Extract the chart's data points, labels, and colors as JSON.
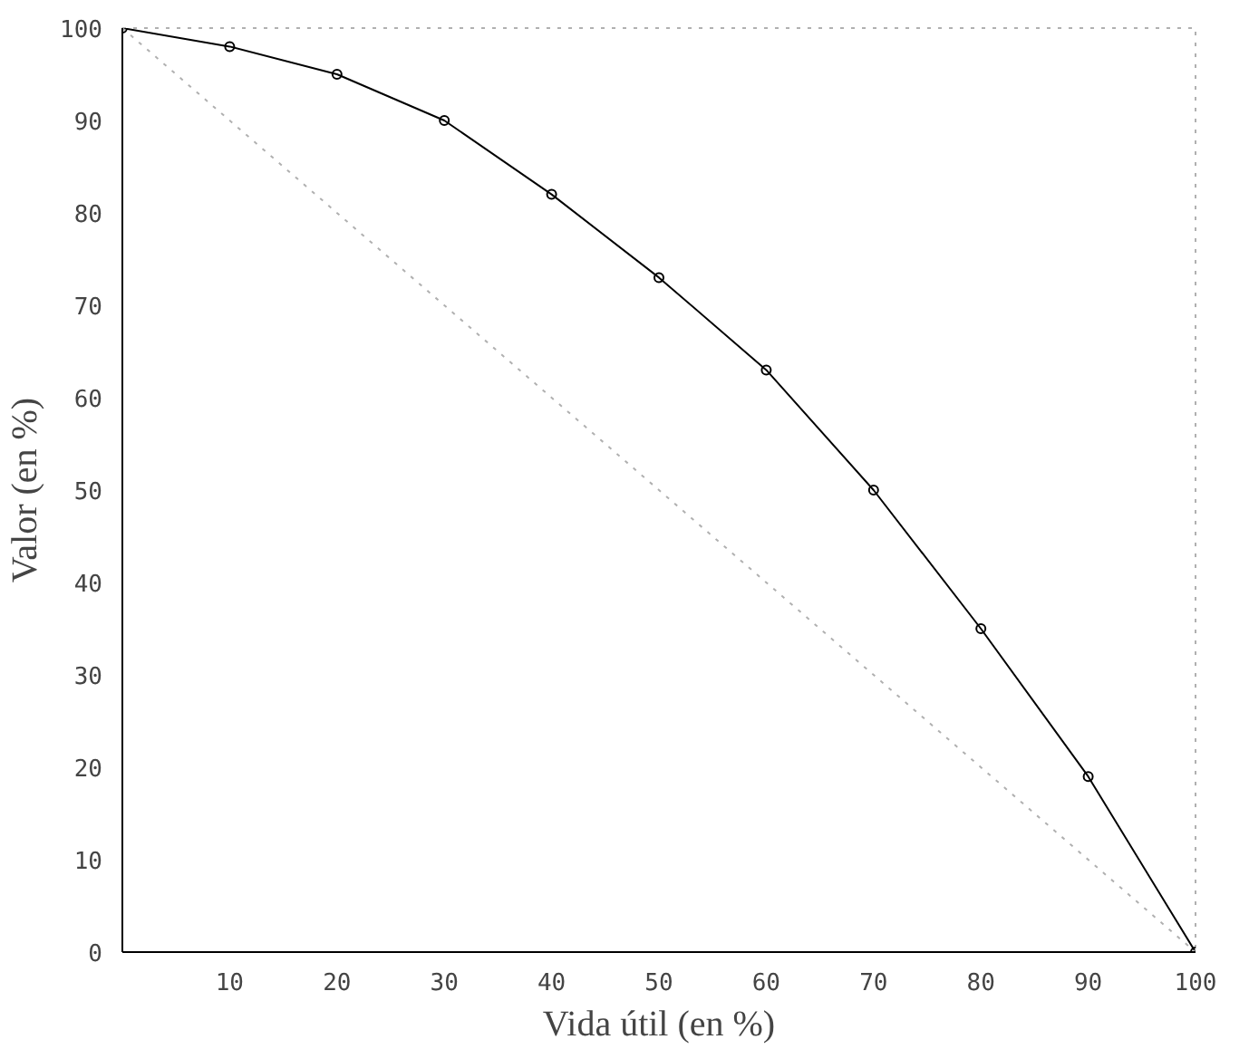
{
  "chart_data": {
    "type": "line",
    "xlabel": "Vida útil (en %)",
    "ylabel": "Valor (en %)",
    "xlim": [
      0,
      100
    ],
    "ylim": [
      0,
      100
    ],
    "xticks": [
      10,
      20,
      30,
      40,
      50,
      60,
      70,
      80,
      90,
      100
    ],
    "yticks": [
      0,
      10,
      20,
      30,
      40,
      50,
      60,
      70,
      80,
      90,
      100
    ],
    "grid": false,
    "series": [
      {
        "color": "#000000",
        "x": [
          0,
          10,
          20,
          30,
          40,
          50,
          60,
          70,
          80,
          90,
          100
        ],
        "values": [
          100,
          98,
          95,
          90,
          82,
          73,
          63,
          50,
          35,
          19,
          0
        ],
        "marker": "circle",
        "line_style": "solid"
      },
      {
        "color": "#b0b0b0",
        "x": [
          0,
          100
        ],
        "values": [
          100,
          0
        ],
        "marker": "none",
        "line_style": "dotted"
      }
    ]
  }
}
